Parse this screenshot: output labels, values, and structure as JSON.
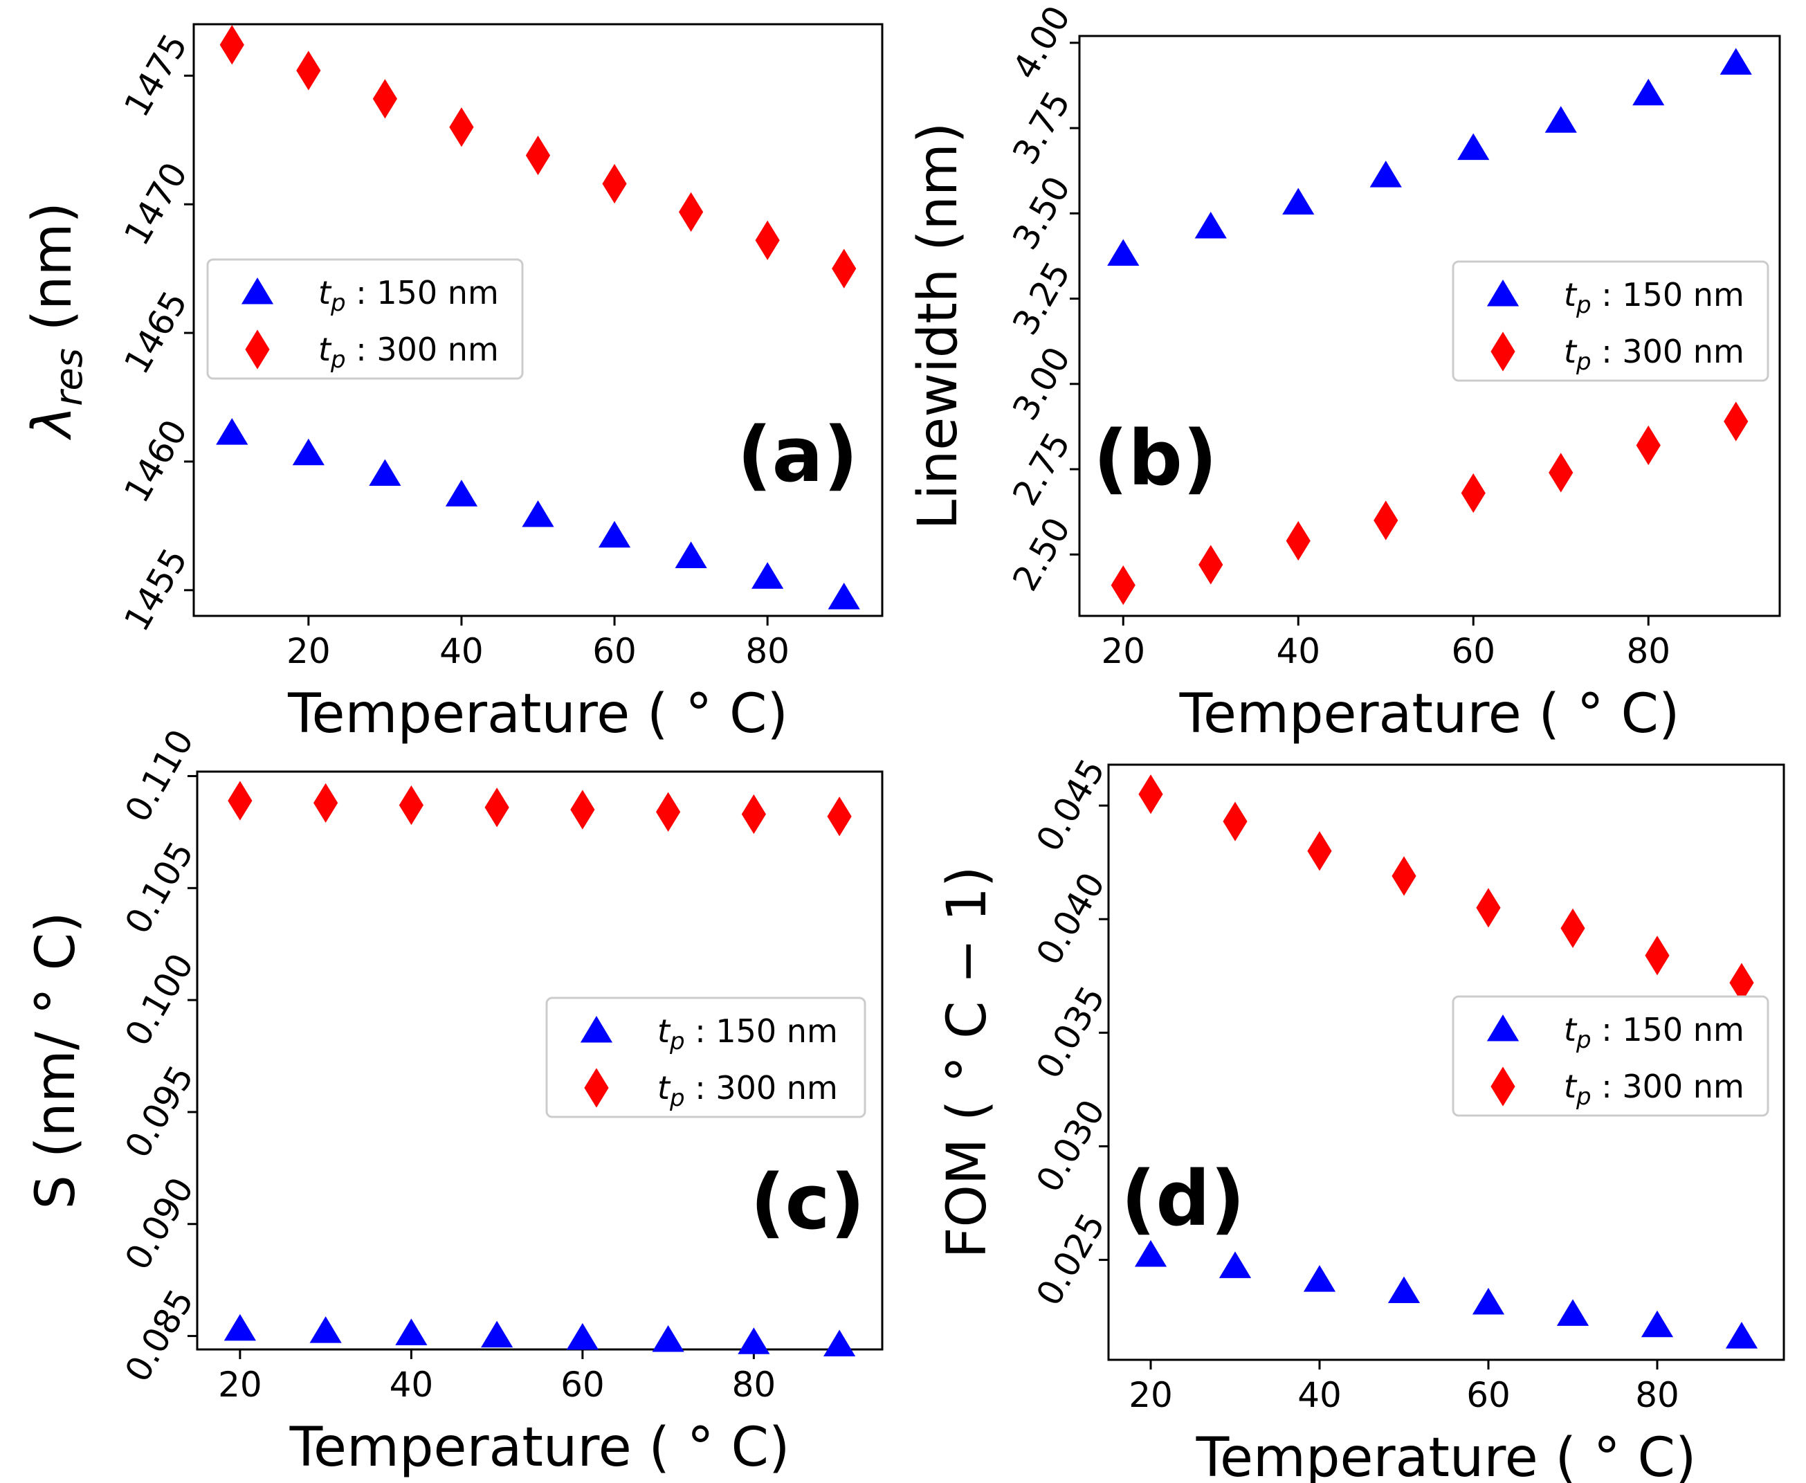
{
  "colors": {
    "series_150": "#0000ff",
    "series_300": "#ff0000",
    "axes": "#000000",
    "legend_border": "#cccccc"
  },
  "chart_data": [
    {
      "type": "scatter",
      "panel_label": "(a)",
      "xlabel": "Temperature ( ° C)",
      "ylabel": "λres (nm)",
      "ylabel_main": "λ",
      "ylabel_sub": "res",
      "ylabel_tail": " (nm)",
      "xlim": [
        5,
        95
      ],
      "ylim": [
        1454,
        1477
      ],
      "xticks": [
        20,
        40,
        60,
        80
      ],
      "yticks": [
        1455,
        1460,
        1465,
        1470,
        1475
      ],
      "legend_position": "center-left",
      "series": [
        {
          "name": "150 nm",
          "legend_var": "t",
          "legend_sub": "p",
          "legend_text": " : 150 nm",
          "marker": "triangle",
          "x": [
            10,
            20,
            30,
            40,
            50,
            60,
            70,
            80,
            90
          ],
          "y": [
            1461.1,
            1460.3,
            1459.5,
            1458.7,
            1457.9,
            1457.1,
            1456.3,
            1455.5,
            1454.7
          ]
        },
        {
          "name": "300 nm",
          "legend_var": "t",
          "legend_sub": "p",
          "legend_text": " : 300 nm",
          "marker": "diamond",
          "x": [
            10,
            20,
            30,
            40,
            50,
            60,
            70,
            80,
            90
          ],
          "y": [
            1476.2,
            1475.2,
            1474.1,
            1473.0,
            1471.9,
            1470.8,
            1469.7,
            1468.6,
            1467.5
          ]
        }
      ]
    },
    {
      "type": "scatter",
      "panel_label": "(b)",
      "xlabel": "Temperature ( ° C)",
      "ylabel": "Linewidth (nm)",
      "xlim": [
        15,
        95
      ],
      "ylim": [
        2.32,
        4.02
      ],
      "xticks": [
        20,
        40,
        60,
        80
      ],
      "yticks": [
        "2.50",
        "2.75",
        "3.00",
        "3.25",
        "3.50",
        "3.75",
        "4.00"
      ],
      "legend_position": "center-right",
      "series": [
        {
          "name": "150 nm",
          "legend_var": "t",
          "legend_sub": "p",
          "legend_text": " : 150 nm",
          "marker": "triangle",
          "x": [
            20,
            30,
            40,
            50,
            60,
            70,
            80,
            90
          ],
          "y": [
            3.38,
            3.46,
            3.53,
            3.61,
            3.69,
            3.77,
            3.85,
            3.94
          ]
        },
        {
          "name": "300 nm",
          "legend_var": "t",
          "legend_sub": "p",
          "legend_text": " : 300 nm",
          "marker": "diamond",
          "x": [
            20,
            30,
            40,
            50,
            60,
            70,
            80,
            90
          ],
          "y": [
            2.41,
            2.47,
            2.54,
            2.6,
            2.68,
            2.74,
            2.82,
            2.89
          ]
        }
      ]
    },
    {
      "type": "scatter",
      "panel_label": "(c)",
      "xlabel": "Temperature ( ° C)",
      "ylabel": "S (nm/ ° C)",
      "xlim": [
        15,
        95
      ],
      "ylim": [
        0.0844,
        0.1102
      ],
      "xticks": [
        20,
        40,
        60,
        80
      ],
      "yticks": [
        "0.085",
        "0.090",
        "0.095",
        "0.100",
        "0.105",
        "0.110"
      ],
      "legend_position": "center-right",
      "series": [
        {
          "name": "150 nm",
          "legend_var": "t",
          "legend_sub": "p",
          "legend_text": " : 150 nm",
          "marker": "triangle",
          "x": [
            20,
            30,
            40,
            50,
            60,
            70,
            80,
            90
          ],
          "y": [
            0.0853,
            0.0852,
            0.0851,
            0.085,
            0.0849,
            0.0848,
            0.0847,
            0.0846
          ]
        },
        {
          "name": "300 nm",
          "legend_var": "t",
          "legend_sub": "p",
          "legend_text": " : 300 nm",
          "marker": "diamond",
          "x": [
            20,
            30,
            40,
            50,
            60,
            70,
            80,
            90
          ],
          "y": [
            0.1089,
            0.1088,
            0.1087,
            0.1086,
            0.1085,
            0.1084,
            0.1083,
            0.1082
          ]
        }
      ]
    },
    {
      "type": "scatter",
      "panel_label": "(d)",
      "xlabel": "Temperature ( ° C)",
      "ylabel": "FOM ( ° C − 1)",
      "xlim": [
        15,
        95
      ],
      "ylim": [
        0.0206,
        0.0468
      ],
      "xticks": [
        20,
        40,
        60,
        80
      ],
      "yticks": [
        "0.025",
        "0.030",
        "0.035",
        "0.040",
        "0.045"
      ],
      "legend_position": "center-right",
      "series": [
        {
          "name": "150 nm",
          "legend_var": "t",
          "legend_sub": "p",
          "legend_text": " : 150 nm",
          "marker": "triangle",
          "x": [
            20,
            30,
            40,
            50,
            60,
            70,
            80,
            90
          ],
          "y": [
            0.0252,
            0.0247,
            0.0241,
            0.0236,
            0.0231,
            0.0226,
            0.0221,
            0.0216
          ]
        },
        {
          "name": "300 nm",
          "legend_var": "t",
          "legend_sub": "p",
          "legend_text": " : 300 nm",
          "marker": "diamond",
          "x": [
            20,
            30,
            40,
            50,
            60,
            70,
            80,
            90
          ],
          "y": [
            0.0455,
            0.0443,
            0.043,
            0.0419,
            0.0405,
            0.0396,
            0.0384,
            0.0372
          ]
        }
      ]
    }
  ]
}
